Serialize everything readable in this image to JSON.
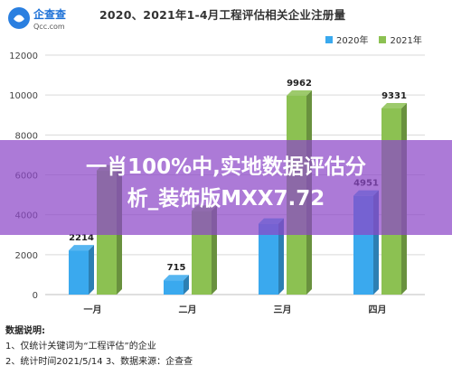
{
  "logo": {
    "cn": "企查查",
    "en": "Qcc.com"
  },
  "overlay_text": {
    "line1": "一肖100%中,实地数据评估分",
    "line2": "析_装饰版MXX7.72"
  },
  "notes": {
    "heading": "数据说明:",
    "line1": "1、仅统计关键词为“工程评估”的企业",
    "line2": "2、统计时间2021/5/14   3、数据来源：企查查"
  },
  "colors": {
    "series2020": "#3aa9ee",
    "series2021": "#8cc152"
  },
  "chart_data": {
    "type": "bar",
    "title": "2020、2021年1-4月工程评估相关企业注册量",
    "xlabel": "",
    "ylabel": "",
    "categories": [
      "一月",
      "二月",
      "三月",
      "四月"
    ],
    "series": [
      {
        "name": "2020年",
        "values": [
          2214,
          715,
          3550,
          4951
        ],
        "labels": [
          "2214",
          "715",
          "",
          "4951"
        ]
      },
      {
        "name": "2021年",
        "values": [
          6222,
          4200,
          9962,
          9331
        ],
        "labels": [
          "",
          "",
          "9962",
          "9331"
        ]
      }
    ],
    "ylim": [
      0,
      12000
    ],
    "yticks": [
      0,
      2000,
      4000,
      6000,
      8000,
      10000,
      12000
    ],
    "yticklabels": [
      "0",
      "2000",
      "4000",
      "6000",
      "8000",
      "10000",
      "12000"
    ],
    "grid": true,
    "legend": "top-right"
  }
}
